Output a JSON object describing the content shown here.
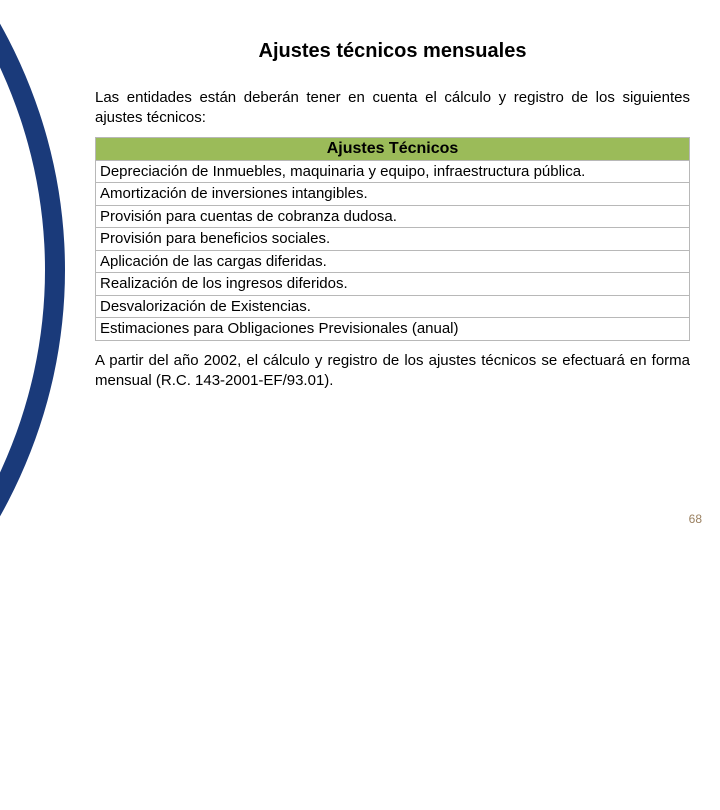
{
  "title": "Ajustes técnicos mensuales",
  "intro": "Las entidades están deberán tener en cuenta el cálculo y registro de los siguientes ajustes técnicos:",
  "table": {
    "header": "Ajustes Técnicos",
    "header_bg": "#9bbb59",
    "border_color": "#b8b8b8",
    "rows": [
      "Depreciación de Inmuebles, maquinaria y equipo, infraestructura pública.",
      "Amortización de inversiones intangibles.",
      "Provisión para cuentas de cobranza dudosa.",
      "Provisión para beneficios sociales.",
      "Aplicación de las cargas diferidas.",
      "Realización de los ingresos diferidos.",
      "Desvalorización de Existencias.",
      "Estimaciones para Obligaciones Previsionales (anual)"
    ]
  },
  "outro": "A partir del año 2002, el cálculo y registro de los ajustes técnicos se efectuará en forma mensual (R.C. 143-2001-EF/93.01).",
  "page_number": "68",
  "colors": {
    "curve_stroke": "#1a3a7a",
    "background": "#ffffff",
    "text": "#000000",
    "page_num": "#9a8060"
  }
}
